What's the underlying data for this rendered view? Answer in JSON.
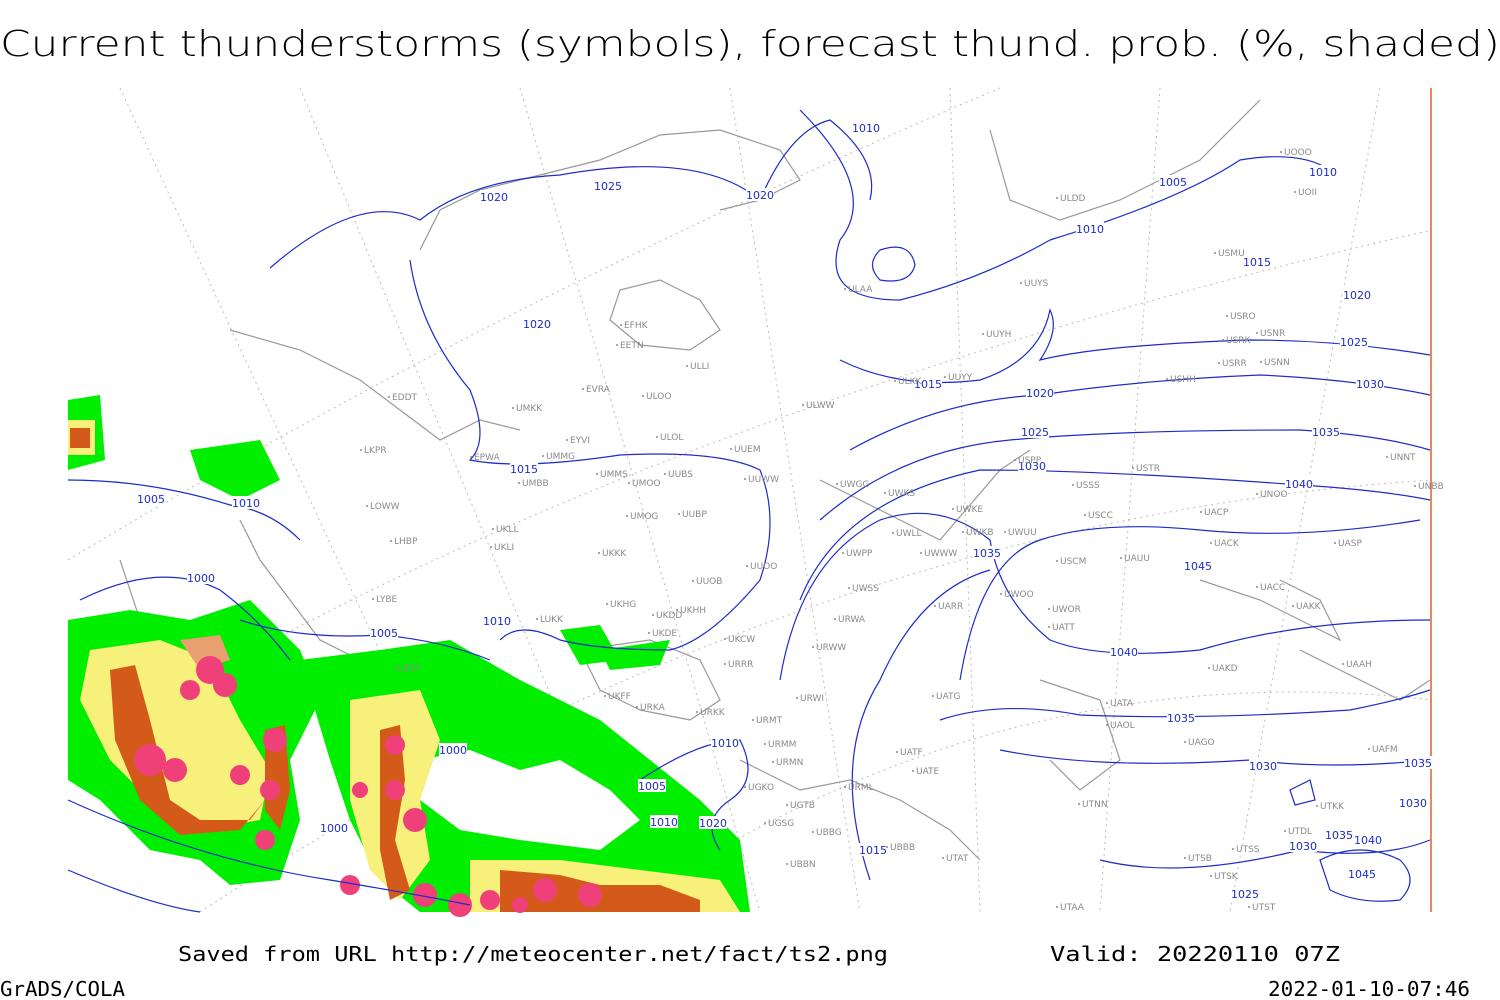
{
  "header": {
    "title": "Current thunderstorms (symbols), forecast thund. prob. (%, shaded)"
  },
  "footer": {
    "source": "Saved from URL http://meteocenter.net/fact/ts2.png",
    "valid": "Valid: 20220110 07Z",
    "software": "GrADS/COLA",
    "timestamp": "2022-01-10-07:46"
  },
  "isobar_labels": [
    1010,
    1020,
    1025,
    1020,
    1005,
    1010,
    1010,
    1015,
    1020,
    1020,
    1025,
    1015,
    1030,
    1020,
    1025,
    1035,
    1015,
    1030,
    1040,
    1005,
    1010,
    1035,
    1045,
    1000,
    1005,
    1010,
    1040,
    1035,
    1000,
    1010,
    1030,
    1005,
    1000,
    1010,
    1020,
    1015,
    1035,
    1030,
    1035,
    1040,
    1030,
    1045,
    1025
  ],
  "stations": [
    "UOOO",
    "UOII",
    "ULDD",
    "USMU",
    "ULAA",
    "UUYS",
    "EFHK",
    "EETN",
    "USRO",
    "USNR",
    "USRK",
    "UUYH",
    "ULLI",
    "USRR",
    "USNN",
    "ULKK",
    "UUYY",
    "USHH",
    "EVRA",
    "ULOO",
    "EDDT",
    "UMKK",
    "ULWW",
    "ULOL",
    "EYVI",
    "UUEM",
    "LKPR",
    "EPWA",
    "UMMG",
    "UMMS",
    "UUBS",
    "UMOO",
    "UMBB",
    "UUWW",
    "UWGG",
    "UWKS",
    "USPP",
    "USSS",
    "USTR",
    "UNNT",
    "UNBB",
    "UNOO",
    "LOWW",
    "UUBP",
    "UMOG",
    "UWKE",
    "UWLL",
    "UWKB",
    "UWUU",
    "USCC",
    "UACP",
    "UKLL",
    "LHBP",
    "UKLI",
    "UWPP",
    "UWWW",
    "UACK",
    "UASP",
    "UKKK",
    "USCM",
    "UAUU",
    "UUOO",
    "UUOB",
    "UWSS",
    "UACC",
    "LYBE",
    "UWOO",
    "UARR",
    "UWOR",
    "UKHG",
    "UKDD",
    "UKHH",
    "UAKK",
    "LUKK",
    "UKDE",
    "URWA",
    "UATT",
    "UKCW",
    "URWW",
    "URRR",
    "UAKD",
    "LBSF",
    "UAAH",
    "UKFF",
    "URWI",
    "UATG",
    "URKA",
    "URKK",
    "UATA",
    "URMT",
    "UAOL",
    "UAGO",
    "URMM",
    "UATF",
    "URMN",
    "UATE",
    "UAFM",
    "UGKO",
    "URML",
    "UGTB",
    "UTNN",
    "UTDL",
    "UGSG",
    "UBBG",
    "UBBB",
    "UTSB",
    "UTSS",
    "UTAT",
    "UBBN",
    "UTSK",
    "UTAA",
    "UTST",
    "UTKK"
  ]
}
